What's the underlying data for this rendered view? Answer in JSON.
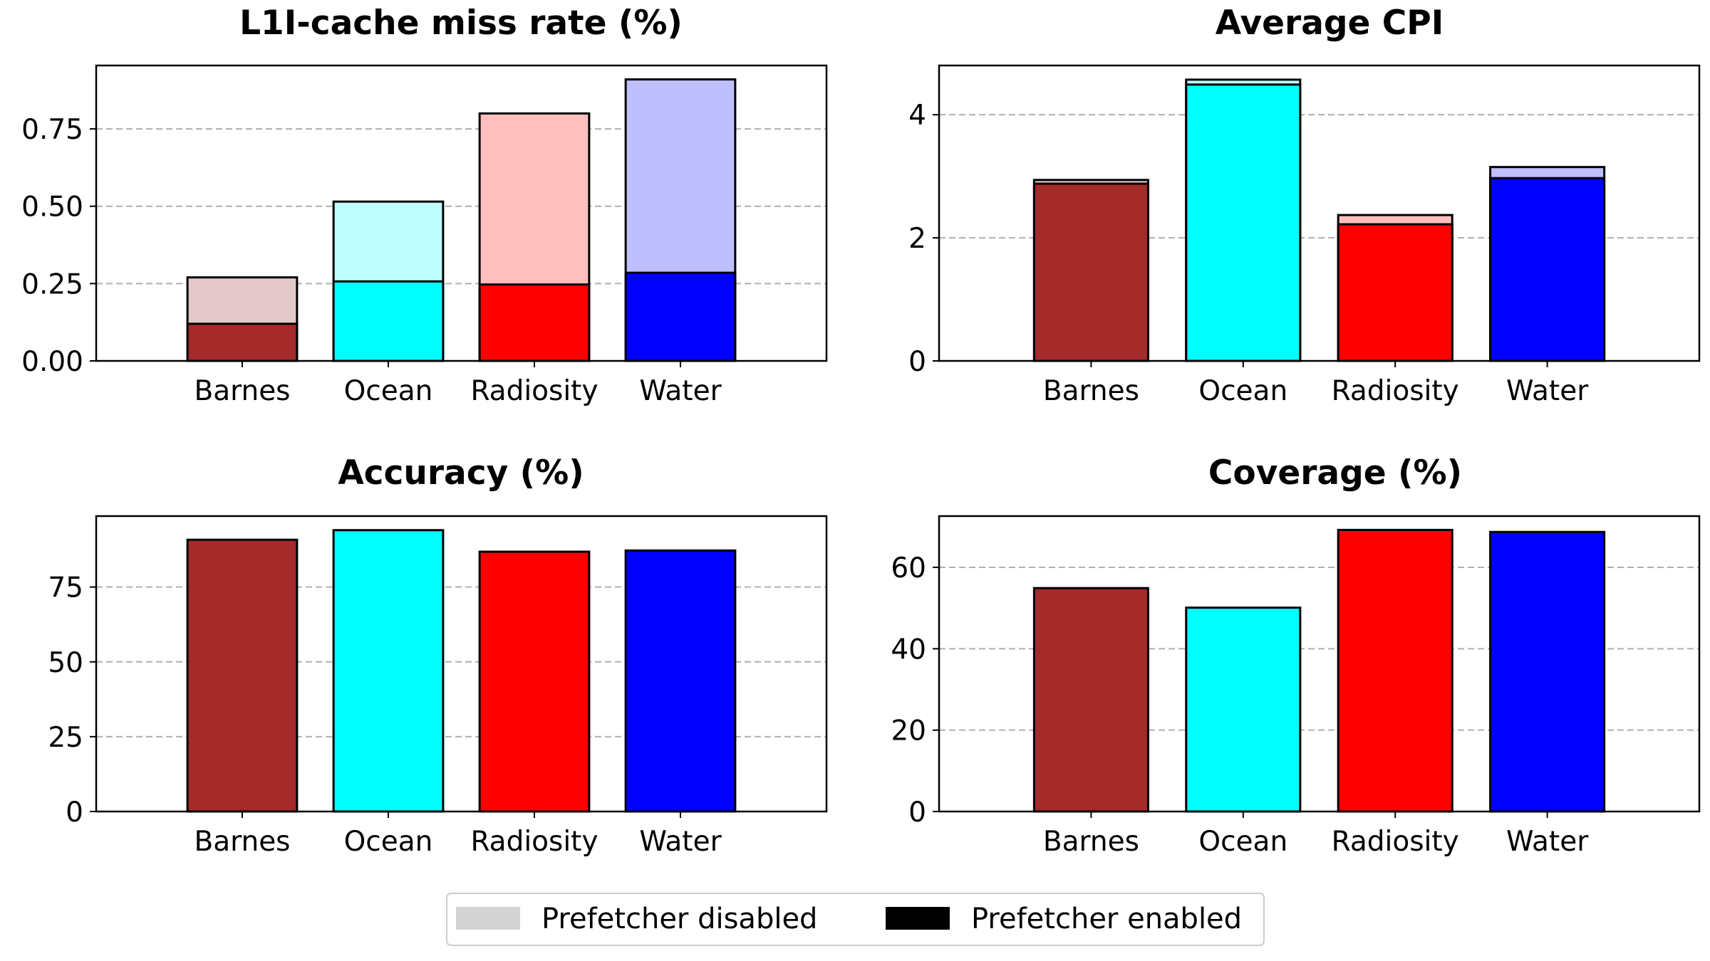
{
  "colors": {
    "Barnes": {
      "enabled": "#a52a2a",
      "disabled": "#e4c9ca"
    },
    "Ocean": {
      "enabled": "#00ffff",
      "disabled": "#bffdfe"
    },
    "Radiosity": {
      "enabled": "#ff0000",
      "disabled": "#ffbfbf"
    },
    "Water": {
      "enabled": "#0000ff",
      "disabled": "#bfbffe"
    },
    "edge": "#000000",
    "grid": "#b0b0b0",
    "legend_disabled": "#d3d3d3",
    "legend_enabled": "#000000"
  },
  "legend": {
    "placement": "bottom-center",
    "entries": [
      {
        "label": "Prefetcher disabled",
        "swatch": "legend_disabled"
      },
      {
        "label": "Prefetcher enabled",
        "swatch": "legend_enabled"
      }
    ]
  },
  "chart_data": [
    {
      "type": "bar",
      "stacked_overlay": true,
      "title": "L1I-cache miss rate (%)",
      "categories": [
        "Barnes",
        "Ocean",
        "Radiosity",
        "Water"
      ],
      "series": [
        {
          "name": "Prefetcher disabled",
          "values": [
            0.27,
            0.515,
            0.8,
            0.91
          ]
        },
        {
          "name": "Prefetcher enabled",
          "values": [
            0.12,
            0.257,
            0.247,
            0.285
          ]
        }
      ],
      "ylim": [
        0,
        0.955
      ],
      "yticks": [
        0,
        0.25,
        0.5,
        0.75
      ],
      "ytick_labels": [
        "0.00",
        "0.25",
        "0.50",
        "0.75"
      ],
      "grid": "horizontal dashed"
    },
    {
      "type": "bar",
      "stacked_overlay": true,
      "title": "Average CPI",
      "categories": [
        "Barnes",
        "Ocean",
        "Radiosity",
        "Water"
      ],
      "series": [
        {
          "name": "Prefetcher disabled",
          "values": [
            2.94,
            4.57,
            2.37,
            3.15
          ]
        },
        {
          "name": "Prefetcher enabled",
          "values": [
            2.88,
            4.49,
            2.22,
            2.97
          ]
        }
      ],
      "ylim": [
        0,
        4.8
      ],
      "yticks": [
        0,
        2,
        4
      ],
      "ytick_labels": [
        "0",
        "2",
        "4"
      ],
      "grid": "horizontal dashed"
    },
    {
      "type": "bar",
      "title": "Accuracy (%)",
      "categories": [
        "Barnes",
        "Ocean",
        "Radiosity",
        "Water"
      ],
      "series": [
        {
          "name": "Prefetcher enabled",
          "values": [
            90.8,
            94.0,
            86.8,
            87.2
          ]
        }
      ],
      "ylim": [
        0,
        98.7
      ],
      "yticks": [
        0,
        25,
        50,
        75
      ],
      "ytick_labels": [
        "0",
        "25",
        "50",
        "75"
      ],
      "grid": "horizontal dashed"
    },
    {
      "type": "bar",
      "title": "Coverage (%)",
      "categories": [
        "Barnes",
        "Ocean",
        "Radiosity",
        "Water"
      ],
      "series": [
        {
          "name": "Prefetcher enabled",
          "values": [
            54.9,
            50.1,
            69.2,
            68.7
          ]
        }
      ],
      "ylim": [
        0,
        72.6
      ],
      "yticks": [
        0,
        20,
        40,
        60
      ],
      "ytick_labels": [
        "0",
        "20",
        "40",
        "60"
      ],
      "grid": "horizontal dashed"
    }
  ]
}
